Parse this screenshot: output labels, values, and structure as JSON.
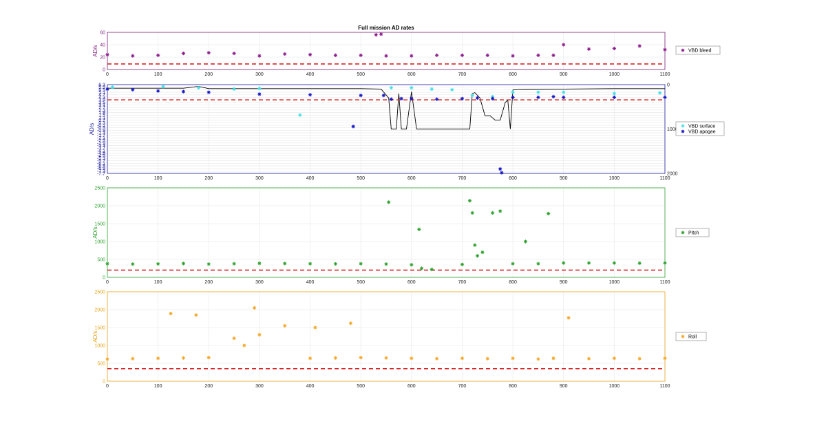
{
  "figure": {
    "title": "Full mission AD rates"
  },
  "chart_data": [
    {
      "type": "scatter",
      "ylabel": "AD/s",
      "xlim": [
        0,
        1100
      ],
      "ylim": [
        0,
        60
      ],
      "xticks": [
        0,
        100,
        200,
        300,
        400,
        500,
        600,
        700,
        800,
        900,
        1000,
        1100
      ],
      "yticks": [
        0,
        20,
        40,
        60
      ],
      "axis_color": "#7b1f7b",
      "grid": true,
      "legend": "outside-right",
      "threshold": {
        "y": 9,
        "color": "#d62728",
        "style": "dashed"
      },
      "series": [
        {
          "name": "VBD bleed",
          "color": "#8b1a8b",
          "marker": "asterisk",
          "x": [
            0,
            50,
            100,
            150,
            200,
            250,
            300,
            350,
            400,
            450,
            500,
            530,
            540,
            550,
            600,
            650,
            700,
            750,
            800,
            850,
            880,
            900,
            950,
            1000,
            1050,
            1100
          ],
          "y": [
            24,
            22,
            23,
            26,
            27,
            26,
            22,
            25,
            24,
            23,
            23,
            56,
            57,
            22,
            22,
            23,
            23,
            23,
            22,
            23,
            23,
            40,
            33,
            34,
            38,
            32
          ]
        }
      ]
    },
    {
      "type": "scatter",
      "ylabel": "AD/s",
      "xlim": [
        0,
        1100
      ],
      "ylim": [
        -7.7,
        6.3
      ],
      "y2lim": [
        0,
        2000
      ],
      "xticks": [
        0,
        100,
        200,
        300,
        400,
        500,
        600,
        700,
        800,
        900,
        1000,
        1100
      ],
      "yticks": [
        6.3,
        5.9,
        5.5,
        5.1,
        4.7,
        4.3,
        3.9,
        3.5,
        3.1,
        2.7,
        2.3,
        1.9,
        1.5,
        1.1,
        0.7,
        0.3,
        -0.1,
        -0.5,
        -0.9,
        -1.3,
        -1.7,
        -2.1,
        -2.5,
        -2.9,
        -3.3,
        -3.7,
        -4.1,
        -4.5,
        -4.9,
        -5.3,
        -5.7,
        -6.1,
        -6.5,
        -6.9,
        -7.3,
        -7.7
      ],
      "y2ticks": [
        0,
        1000,
        2000
      ],
      "axis_color": "#1a1aa0",
      "grid": true,
      "legend": "outside-right",
      "threshold": {
        "y": 3.9,
        "color": "#d62728",
        "style": "dashed"
      },
      "series": [
        {
          "name": "VBD surface",
          "color": "#3ee0e6",
          "marker": "asterisk",
          "x": [
            10,
            110,
            180,
            250,
            300,
            380,
            560,
            600,
            640,
            680,
            720,
            760,
            800,
            850,
            900,
            1000,
            1090
          ],
          "y": [
            5.9,
            6.0,
            5.8,
            5.6,
            5.7,
            1.5,
            5.8,
            5.8,
            5.6,
            5.5,
            4.6,
            4.4,
            5.1,
            5.1,
            5.1,
            4.9,
            5.0
          ]
        },
        {
          "name": "VBD apogee",
          "color": "#1515c8",
          "marker": "asterisk",
          "x": [
            0,
            50,
            100,
            150,
            200,
            300,
            400,
            500,
            545,
            560,
            580,
            600,
            650,
            700,
            730,
            760,
            800,
            850,
            880,
            900,
            1000,
            1100,
            485,
            775,
            778
          ],
          "y": [
            5.6,
            5.5,
            5.3,
            5.2,
            5.1,
            4.8,
            4.7,
            4.6,
            4.6,
            4.0,
            4.1,
            4.1,
            4.0,
            4.1,
            4.2,
            4.1,
            4.3,
            4.3,
            4.4,
            4.3,
            4.3,
            4.3,
            -0.3,
            -7.0,
            -7.6
          ]
        }
      ],
      "overlay_line": {
        "axis": "right",
        "color": "#000000",
        "x": [
          0,
          150,
          180,
          200,
          500,
          540,
          555,
          560,
          570,
          575,
          580,
          590,
          600,
          610,
          620,
          700,
          715,
          720,
          725,
          735,
          745,
          755,
          765,
          775,
          785,
          790,
          795,
          800,
          810,
          900,
          1000,
          1100
        ],
        "y": [
          80,
          80,
          40,
          90,
          90,
          100,
          300,
          1000,
          1000,
          200,
          1000,
          1000,
          160,
          1000,
          1000,
          1000,
          1000,
          200,
          180,
          300,
          700,
          700,
          800,
          800,
          400,
          350,
          1000,
          120,
          110,
          100,
          90,
          90
        ]
      }
    },
    {
      "type": "scatter",
      "ylabel": "AD/s",
      "xlim": [
        0,
        1100
      ],
      "ylim": [
        0,
        2500
      ],
      "xticks": [
        0,
        100,
        200,
        300,
        400,
        500,
        600,
        700,
        800,
        900,
        1000,
        1100
      ],
      "yticks": [
        0,
        500,
        1000,
        1500,
        2000,
        2500
      ],
      "axis_color": "#2ca02c",
      "grid": true,
      "legend": "outside-right",
      "threshold": {
        "y": 200,
        "color": "#d62728",
        "style": "dashed"
      },
      "series": [
        {
          "name": "Pitch",
          "color": "#2ca02c",
          "marker": "asterisk",
          "x": [
            0,
            50,
            100,
            150,
            200,
            250,
            300,
            350,
            400,
            450,
            500,
            550,
            555,
            600,
            615,
            620,
            640,
            700,
            715,
            720,
            725,
            730,
            740,
            760,
            775,
            800,
            825,
            850,
            870,
            900,
            950,
            1000,
            1050,
            1100
          ],
          "y": [
            380,
            370,
            375,
            385,
            370,
            380,
            390,
            385,
            380,
            375,
            380,
            370,
            2100,
            350,
            1340,
            250,
            220,
            360,
            2140,
            1800,
            900,
            600,
            700,
            1800,
            1850,
            380,
            1000,
            380,
            1780,
            400,
            400,
            400,
            395,
            400
          ]
        }
      ]
    },
    {
      "type": "scatter",
      "ylabel": "AD/s",
      "xlim": [
        0,
        1100
      ],
      "ylim": [
        0,
        2500
      ],
      "xticks": [
        0,
        100,
        200,
        300,
        400,
        500,
        600,
        700,
        800,
        900,
        1000,
        1100
      ],
      "yticks": [
        0,
        500,
        1000,
        1500,
        2000,
        2500
      ],
      "axis_color": "#e8a317",
      "grid": true,
      "legend": "outside-right",
      "threshold": {
        "y": 350,
        "color": "#d62728",
        "style": "dashed"
      },
      "series": [
        {
          "name": "Roll",
          "color": "#f5a623",
          "marker": "asterisk",
          "x": [
            0,
            50,
            100,
            125,
            150,
            175,
            200,
            250,
            270,
            290,
            300,
            350,
            400,
            410,
            450,
            480,
            500,
            550,
            600,
            650,
            700,
            750,
            800,
            850,
            880,
            910,
            950,
            1000,
            1050,
            1100
          ],
          "y": [
            620,
            630,
            640,
            1890,
            650,
            1850,
            660,
            1200,
            1000,
            2050,
            1300,
            1550,
            640,
            1500,
            650,
            1620,
            660,
            650,
            640,
            630,
            640,
            630,
            640,
            620,
            640,
            1770,
            630,
            640,
            630,
            640
          ]
        }
      ]
    }
  ]
}
